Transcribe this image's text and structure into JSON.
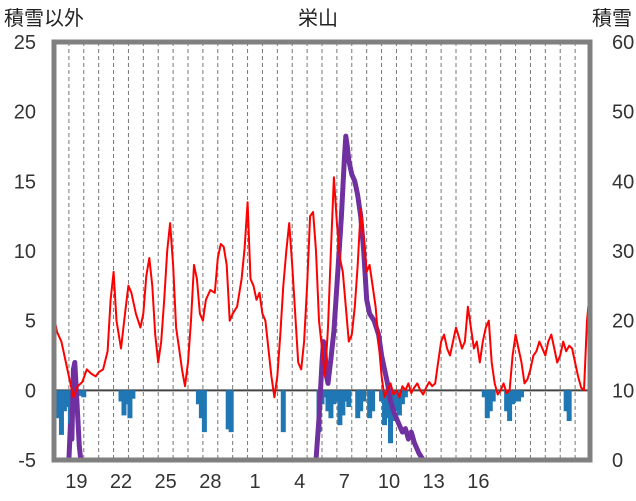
{
  "chart_data": {
    "type": "line",
    "title": "栄山",
    "left_axis_title": "積雪以外",
    "right_axis_title": "積雪",
    "left_ylim": [
      -5,
      25
    ],
    "left_yticks": [
      25,
      20,
      15,
      10,
      5,
      0,
      -5
    ],
    "right_ylim": [
      0,
      60
    ],
    "right_yticks": [
      60,
      50,
      40,
      30,
      20,
      10,
      0
    ],
    "x_range": [
      0,
      36
    ],
    "xtick_labels": [
      "19",
      "22",
      "25",
      "28",
      "1",
      "4",
      "7",
      "10",
      "13",
      "16"
    ],
    "xtick_days": [
      1.5,
      4.5,
      7.5,
      10.5,
      13.5,
      16.5,
      19.5,
      22.5,
      25.5,
      28.5
    ],
    "gridlines": "vertical dashed, daily",
    "colors": {
      "temperature": "#ff0000",
      "precipitation": "#1f77b4",
      "snow": "#7030a0",
      "frame": "#808080",
      "zero_line": "#444444"
    },
    "series": [
      {
        "name": "temperature",
        "axis": "left",
        "points": [
          [
            0.0,
            5.3
          ],
          [
            0.2,
            4.2
          ],
          [
            0.5,
            3.5
          ],
          [
            0.8,
            2.0
          ],
          [
            1.0,
            1.0
          ],
          [
            1.3,
            -0.5
          ],
          [
            1.6,
            0.3
          ],
          [
            1.9,
            0.6
          ],
          [
            2.2,
            1.5
          ],
          [
            2.5,
            1.2
          ],
          [
            2.8,
            1.0
          ],
          [
            3.0,
            1.3
          ],
          [
            3.3,
            1.5
          ],
          [
            3.6,
            2.8
          ],
          [
            3.8,
            6.5
          ],
          [
            4.0,
            8.5
          ],
          [
            4.2,
            5.0
          ],
          [
            4.5,
            3.0
          ],
          [
            4.8,
            5.8
          ],
          [
            5.0,
            7.5
          ],
          [
            5.2,
            7.0
          ],
          [
            5.5,
            5.5
          ],
          [
            5.8,
            4.5
          ],
          [
            6.0,
            5.5
          ],
          [
            6.2,
            8.2
          ],
          [
            6.4,
            9.5
          ],
          [
            6.6,
            7.5
          ],
          [
            6.8,
            4.0
          ],
          [
            7.0,
            2.0
          ],
          [
            7.2,
            3.5
          ],
          [
            7.4,
            6.5
          ],
          [
            7.6,
            10.0
          ],
          [
            7.8,
            12.0
          ],
          [
            8.0,
            9.0
          ],
          [
            8.2,
            4.5
          ],
          [
            8.4,
            3.0
          ],
          [
            8.6,
            1.5
          ],
          [
            8.8,
            0.3
          ],
          [
            9.0,
            2.0
          ],
          [
            9.2,
            5.0
          ],
          [
            9.4,
            9.0
          ],
          [
            9.6,
            8.0
          ],
          [
            9.8,
            5.5
          ],
          [
            10.0,
            5.0
          ],
          [
            10.2,
            6.5
          ],
          [
            10.5,
            7.2
          ],
          [
            10.8,
            7.0
          ],
          [
            11.0,
            9.5
          ],
          [
            11.2,
            10.5
          ],
          [
            11.4,
            10.3
          ],
          [
            11.6,
            9.0
          ],
          [
            11.8,
            5.0
          ],
          [
            12.0,
            5.5
          ],
          [
            12.3,
            6.0
          ],
          [
            12.6,
            8.0
          ],
          [
            12.8,
            10.2
          ],
          [
            13.0,
            13.5
          ],
          [
            13.2,
            8.0
          ],
          [
            13.4,
            7.5
          ],
          [
            13.6,
            6.5
          ],
          [
            13.8,
            7.0
          ],
          [
            14.0,
            5.5
          ],
          [
            14.2,
            5.0
          ],
          [
            14.4,
            3.0
          ],
          [
            14.6,
            1.0
          ],
          [
            14.8,
            -0.5
          ],
          [
            15.0,
            1.0
          ],
          [
            15.2,
            4.0
          ],
          [
            15.4,
            7.5
          ],
          [
            15.6,
            10.0
          ],
          [
            15.8,
            12.0
          ],
          [
            16.0,
            9.0
          ],
          [
            16.2,
            5.5
          ],
          [
            16.4,
            2.0
          ],
          [
            16.6,
            1.5
          ],
          [
            16.8,
            3.5
          ],
          [
            17.0,
            7.5
          ],
          [
            17.2,
            12.5
          ],
          [
            17.4,
            12.8
          ],
          [
            17.6,
            10.0
          ],
          [
            17.8,
            5.0
          ],
          [
            18.0,
            3.0
          ],
          [
            18.2,
            1.0
          ],
          [
            18.4,
            4.5
          ],
          [
            18.6,
            10.0
          ],
          [
            18.8,
            15.3
          ],
          [
            19.0,
            12.0
          ],
          [
            19.2,
            9.5
          ],
          [
            19.4,
            8.5
          ],
          [
            19.6,
            6.0
          ],
          [
            19.8,
            3.5
          ],
          [
            20.0,
            4.0
          ],
          [
            20.2,
            6.0
          ],
          [
            20.4,
            9.0
          ],
          [
            20.6,
            13.0
          ],
          [
            20.8,
            11.0
          ],
          [
            21.0,
            8.5
          ],
          [
            21.2,
            9.0
          ],
          [
            21.4,
            7.5
          ],
          [
            21.6,
            6.0
          ],
          [
            21.8,
            3.5
          ],
          [
            22.0,
            1.0
          ],
          [
            22.2,
            -0.5
          ],
          [
            22.4,
            0.0
          ],
          [
            22.6,
            0.5
          ],
          [
            22.8,
            -0.3
          ],
          [
            23.0,
            0.0
          ],
          [
            23.2,
            -0.5
          ],
          [
            23.4,
            0.3
          ],
          [
            23.6,
            0.0
          ],
          [
            23.8,
            0.5
          ],
          [
            24.0,
            -0.2
          ],
          [
            24.2,
            0.2
          ],
          [
            24.4,
            0.5
          ],
          [
            24.6,
            0.0
          ],
          [
            24.8,
            -0.3
          ],
          [
            25.0,
            0.2
          ],
          [
            25.2,
            0.6
          ],
          [
            25.4,
            0.3
          ],
          [
            25.6,
            0.5
          ],
          [
            25.8,
            2.0
          ],
          [
            26.0,
            3.5
          ],
          [
            26.2,
            4.0
          ],
          [
            26.4,
            3.0
          ],
          [
            26.6,
            2.5
          ],
          [
            26.8,
            3.5
          ],
          [
            27.0,
            4.5
          ],
          [
            27.2,
            3.8
          ],
          [
            27.4,
            3.0
          ],
          [
            27.6,
            3.5
          ],
          [
            27.8,
            6.0
          ],
          [
            28.0,
            4.5
          ],
          [
            28.2,
            3.0
          ],
          [
            28.4,
            3.5
          ],
          [
            28.6,
            2.0
          ],
          [
            28.8,
            3.5
          ],
          [
            29.0,
            4.5
          ],
          [
            29.2,
            5.0
          ],
          [
            29.4,
            2.0
          ],
          [
            29.6,
            0.5
          ],
          [
            29.8,
            -0.3
          ],
          [
            30.0,
            0.0
          ],
          [
            30.2,
            0.5
          ],
          [
            30.4,
            -0.2
          ],
          [
            30.6,
            0.0
          ],
          [
            30.8,
            2.5
          ],
          [
            31.0,
            4.0
          ],
          [
            31.2,
            3.0
          ],
          [
            31.4,
            2.0
          ],
          [
            31.6,
            0.5
          ],
          [
            31.8,
            0.8
          ],
          [
            32.0,
            1.5
          ],
          [
            32.2,
            2.5
          ],
          [
            32.4,
            2.8
          ],
          [
            32.6,
            3.5
          ],
          [
            32.8,
            3.0
          ],
          [
            33.0,
            2.5
          ],
          [
            33.2,
            3.5
          ],
          [
            33.4,
            4.0
          ],
          [
            33.6,
            3.0
          ],
          [
            33.8,
            2.0
          ],
          [
            34.0,
            2.5
          ],
          [
            34.2,
            3.5
          ],
          [
            34.4,
            2.8
          ],
          [
            34.6,
            3.2
          ],
          [
            34.8,
            3.0
          ],
          [
            35.0,
            2.0
          ],
          [
            35.2,
            1.0
          ],
          [
            35.4,
            0.2
          ],
          [
            35.6,
            0.0
          ],
          [
            35.8,
            5.0
          ],
          [
            36.0,
            7.3
          ]
        ]
      },
      {
        "name": "precipitation",
        "axis": "left",
        "kind": "bars",
        "x": [
          0.1,
          0.3,
          0.5,
          0.7,
          0.9,
          1.1,
          1.3,
          1.5,
          1.7,
          2.0,
          4.5,
          4.7,
          4.9,
          5.1,
          5.3,
          9.7,
          9.9,
          10.1,
          11.7,
          11.9,
          15.4,
          17.8,
          18.0,
          18.2,
          18.4,
          18.6,
          18.8,
          19.0,
          19.2,
          19.4,
          19.6,
          19.8,
          20.4,
          20.6,
          20.8,
          21.2,
          21.4,
          22.0,
          22.2,
          22.4,
          22.6,
          22.8,
          23.0,
          23.2,
          23.4,
          23.6,
          28.9,
          29.1,
          29.3,
          29.5,
          30.4,
          30.6,
          30.8,
          31.0,
          31.2,
          31.4,
          34.4,
          34.6
        ],
        "values": [
          -0.8,
          -2.0,
          -3.2,
          -1.5,
          -1.2,
          -2.5,
          -1.0,
          -0.6,
          -0.4,
          -0.5,
          -0.8,
          -1.8,
          -1.0,
          -2.0,
          -0.6,
          -1.0,
          -2.0,
          -3.0,
          -2.8,
          -3.0,
          -3.0,
          -3.0,
          -1.0,
          -0.5,
          -1.5,
          -2.0,
          -1.0,
          -0.8,
          -2.5,
          -1.8,
          -0.8,
          -1.2,
          -2.0,
          -1.5,
          -0.8,
          -2.0,
          -1.5,
          -0.8,
          -2.5,
          -2.0,
          -3.8,
          -2.2,
          -1.5,
          -1.8,
          -1.0,
          -0.5,
          -0.5,
          -2.0,
          -1.5,
          -0.8,
          -1.5,
          -2.2,
          -1.0,
          -0.8,
          -0.8,
          -0.5,
          -1.5,
          -2.2
        ]
      },
      {
        "name": "snow",
        "axis": "right",
        "points": [
          [
            1.0,
            0.0
          ],
          [
            1.1,
            5.0
          ],
          [
            1.2,
            3.0
          ],
          [
            1.3,
            13.0
          ],
          [
            1.4,
            14.0
          ],
          [
            1.5,
            10.0
          ],
          [
            1.6,
            6.0
          ],
          [
            1.7,
            2.0
          ],
          [
            1.8,
            0.0
          ],
          [
            2.0,
            0.0
          ],
          [
            16.5,
            0.0
          ],
          [
            17.0,
            0.0
          ],
          [
            17.6,
            0.0
          ],
          [
            17.8,
            6.0
          ],
          [
            17.9,
            10.0
          ],
          [
            18.0,
            14.0
          ],
          [
            18.1,
            17.0
          ],
          [
            18.2,
            15.5
          ],
          [
            18.3,
            12.0
          ],
          [
            18.4,
            11.0
          ],
          [
            18.6,
            14.5
          ],
          [
            18.8,
            18.5
          ],
          [
            19.0,
            25.0
          ],
          [
            19.3,
            35.0
          ],
          [
            19.5,
            43.0
          ],
          [
            19.6,
            46.5
          ],
          [
            19.7,
            45.0
          ],
          [
            19.8,
            43.0
          ],
          [
            20.0,
            41.0
          ],
          [
            20.2,
            40.0
          ],
          [
            20.4,
            38.0
          ],
          [
            20.6,
            35.0
          ],
          [
            20.8,
            30.0
          ],
          [
            21.0,
            23.0
          ],
          [
            21.2,
            21.0
          ],
          [
            21.5,
            20.0
          ],
          [
            21.8,
            18.0
          ],
          [
            22.0,
            15.0
          ],
          [
            22.2,
            13.0
          ],
          [
            22.4,
            11.0
          ],
          [
            22.6,
            8.5
          ],
          [
            22.8,
            7.0
          ],
          [
            23.0,
            6.0
          ],
          [
            23.2,
            5.0
          ],
          [
            23.4,
            4.0
          ],
          [
            23.6,
            4.5
          ],
          [
            23.8,
            3.0
          ],
          [
            24.0,
            4.0
          ],
          [
            24.2,
            2.5
          ],
          [
            24.5,
            1.0
          ],
          [
            24.8,
            0.0
          ],
          [
            25.0,
            0.0
          ]
        ]
      }
    ]
  }
}
